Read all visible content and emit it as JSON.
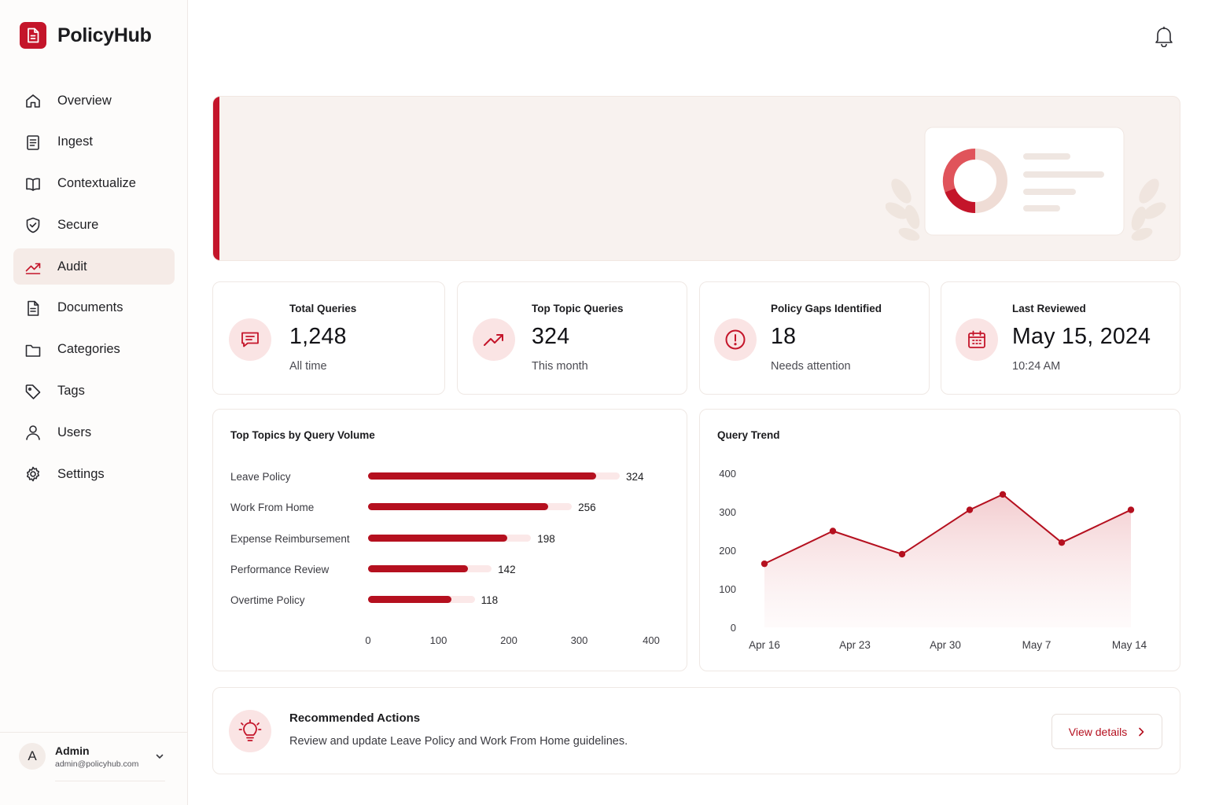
{
  "app": {
    "name": "PolicyHub"
  },
  "sidebar": {
    "items": [
      {
        "label": "Overview",
        "icon": "home-icon",
        "active": false
      },
      {
        "label": "Ingest",
        "icon": "file-text-icon",
        "active": false
      },
      {
        "label": "Contextualize",
        "icon": "book-icon",
        "active": false
      },
      {
        "label": "Secure",
        "icon": "shield-check-icon",
        "active": false
      },
      {
        "label": "Audit",
        "icon": "trending-up-icon",
        "active": true
      },
      {
        "label": "Documents",
        "icon": "document-icon",
        "active": false
      },
      {
        "label": "Categories",
        "icon": "folder-icon",
        "active": false
      },
      {
        "label": "Tags",
        "icon": "tag-icon",
        "active": false
      },
      {
        "label": "Users",
        "icon": "user-icon",
        "active": false
      },
      {
        "label": "Settings",
        "icon": "gear-icon",
        "active": false
      }
    ]
  },
  "user": {
    "initial": "A",
    "name": "Admin",
    "email": "admin@policyhub.com"
  },
  "stats": [
    {
      "label": "Total Queries",
      "value": "1,248",
      "sub": "All time",
      "icon": "message-square-icon"
    },
    {
      "label": "Top Topic Queries",
      "value": "324",
      "sub": "This month",
      "icon": "trending-up-icon"
    },
    {
      "label": "Policy Gaps Identified",
      "value": "18",
      "sub": "Needs attention",
      "icon": "alert-circle-icon"
    },
    {
      "label": "Last Reviewed",
      "value": "May 15, 2024",
      "sub": "10:24 AM",
      "icon": "calendar-icon"
    }
  ],
  "topics_panel": {
    "title": "Top Topics by Query Volume"
  },
  "trend_panel": {
    "title": "Query Trend"
  },
  "recommended": {
    "title": "Recommended Actions",
    "description": "Review and update Leave Policy and Work From Home guidelines.",
    "button_label": "View details",
    "icon": "lightbulb-icon"
  },
  "colors": {
    "accent": "#c4152a",
    "bar": "#b5101f",
    "icon_bg": "#fae4e4",
    "banner_bg": "#f8f2ef"
  },
  "chart_data": [
    {
      "type": "bar",
      "orientation": "horizontal",
      "title": "Top Topics by Query Volume",
      "categories": [
        "Leave Policy",
        "Work From Home",
        "Expense Reimbursement",
        "Performance Review",
        "Overtime Policy"
      ],
      "values": [
        324,
        256,
        198,
        142,
        118
      ],
      "xlim": [
        0,
        400
      ],
      "xticks": [
        0,
        100,
        200,
        300,
        400
      ]
    },
    {
      "type": "area",
      "title": "Query Trend",
      "x": [
        "Apr 16",
        "Apr 20",
        "Apr 25",
        "May 1",
        "May 3",
        "May 9",
        "May 14"
      ],
      "values": [
        165,
        250,
        190,
        305,
        345,
        220,
        305
      ],
      "xticks": [
        "Apr 16",
        "Apr 23",
        "Apr 30",
        "May 7",
        "May 14"
      ],
      "ylim": [
        0,
        400
      ],
      "yticks": [
        0,
        100,
        200,
        300,
        400
      ]
    }
  ]
}
